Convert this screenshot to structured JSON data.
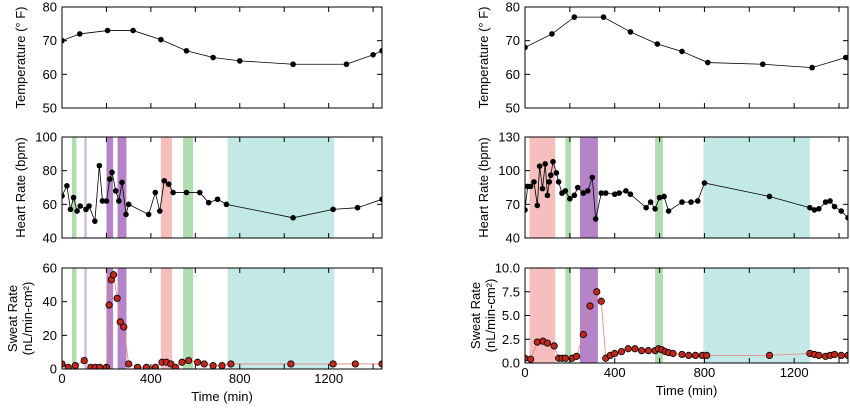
{
  "colors": {
    "green": "#8fcf8f",
    "violet": "#9b59b6",
    "light_violet": "#c9a3d9",
    "red": "#f4a3a3",
    "teal": "#a9e0dd",
    "black_marker": "#000000",
    "sweat_marker": "#c0271d",
    "sweat_line": "#e8827b"
  },
  "chart_data": [
    {
      "type": "line",
      "id": "left-temperature",
      "ylabel": "Temperature (° F)",
      "xlim": [
        0,
        1440
      ],
      "ylim": [
        50,
        80
      ],
      "yticks": [
        "50",
        "60",
        "70",
        "80"
      ],
      "show_xticklabels": false,
      "line_color": "black",
      "marker": "black",
      "x": [
        0,
        80,
        205,
        320,
        445,
        560,
        680,
        800,
        1040,
        1280,
        1400,
        1440
      ],
      "y": [
        70,
        72,
        73,
        73,
        70.3,
        67,
        65,
        64,
        63,
        63,
        65.8,
        67
      ]
    },
    {
      "type": "line",
      "id": "left-heart-rate",
      "ylabel": "Heart Rate (bpm)",
      "xlim": [
        0,
        1440
      ],
      "ylim": [
        40,
        100
      ],
      "yticks": [
        "40",
        "60",
        "80",
        "100"
      ],
      "show_xticklabels": false,
      "line_color": "black",
      "marker": "black",
      "bands": [
        {
          "x": [
            45,
            65
          ],
          "color": "green"
        },
        {
          "x": [
            100,
            112
          ],
          "color": "light_violet"
        },
        {
          "x": [
            200,
            230
          ],
          "color": "violet"
        },
        {
          "x": [
            250,
            290
          ],
          "color": "violet"
        },
        {
          "x": [
            445,
            495
          ],
          "color": "red"
        },
        {
          "x": [
            545,
            590
          ],
          "color": "green"
        },
        {
          "x": [
            745,
            1225
          ],
          "color": "teal"
        }
      ],
      "x": [
        0,
        22,
        38,
        52,
        68,
        82,
        108,
        122,
        148,
        168,
        182,
        200,
        215,
        225,
        242,
        256,
        270,
        288,
        300,
        390,
        420,
        440,
        460,
        480,
        500,
        560,
        620,
        660,
        700,
        740,
        1040,
        1220,
        1330,
        1440
      ],
      "y": [
        65,
        71,
        57,
        64,
        56,
        59,
        57,
        59,
        50,
        83,
        62,
        62,
        75,
        79,
        68,
        62,
        73,
        54,
        60,
        54,
        67,
        56,
        74,
        72,
        67,
        67,
        67,
        61,
        63,
        60,
        52,
        57,
        58,
        63
      ]
    },
    {
      "type": "line",
      "id": "left-sweat-rate",
      "ylabel": "Sweat Rate",
      "ylabel2": "(nL/min-cm²)",
      "xlabel": "Time (min)",
      "xlim": [
        0,
        1440
      ],
      "xticks": [
        "0",
        "400",
        "800",
        "1200"
      ],
      "ylim": [
        0,
        60
      ],
      "yticks": [
        "0",
        "20",
        "40",
        "60"
      ],
      "line_color": "sweat_line",
      "marker": "sweat_marker",
      "bands": [
        {
          "x": [
            45,
            65
          ],
          "color": "green"
        },
        {
          "x": [
            100,
            112
          ],
          "color": "light_violet"
        },
        {
          "x": [
            200,
            230
          ],
          "color": "violet"
        },
        {
          "x": [
            250,
            290
          ],
          "color": "violet"
        },
        {
          "x": [
            445,
            495
          ],
          "color": "red"
        },
        {
          "x": [
            545,
            590
          ],
          "color": "green"
        },
        {
          "x": [
            745,
            1225
          ],
          "color": "teal"
        }
      ],
      "x": [
        0,
        28,
        60,
        100,
        130,
        150,
        170,
        200,
        212,
        222,
        232,
        248,
        262,
        278,
        300,
        340,
        380,
        420,
        450,
        470,
        490,
        510,
        540,
        570,
        610,
        640,
        680,
        720,
        760,
        1030,
        1220,
        1320,
        1440
      ],
      "y": [
        3,
        1,
        2,
        5,
        1,
        1,
        1,
        1,
        38,
        53,
        56,
        42,
        28,
        25,
        3,
        1,
        1,
        1,
        4,
        4,
        3,
        1,
        4,
        5,
        4,
        3,
        2,
        2,
        3,
        3,
        3,
        3,
        3
      ]
    },
    {
      "type": "line",
      "id": "right-temperature",
      "ylabel": "Temperature (° F)",
      "xlim": [
        0,
        1440
      ],
      "ylim": [
        50,
        80
      ],
      "yticks": [
        "50",
        "60",
        "70",
        "80"
      ],
      "show_xticklabels": false,
      "line_color": "black",
      "marker": "black",
      "x": [
        0,
        120,
        220,
        350,
        470,
        590,
        700,
        815,
        1060,
        1280,
        1430,
        1440
      ],
      "y": [
        68,
        72,
        77,
        77,
        72.6,
        69,
        66.8,
        63.5,
        63,
        62,
        65,
        65
      ]
    },
    {
      "type": "line",
      "id": "right-heart-rate",
      "ylabel": "Heart Rate (bpm)",
      "xlim": [
        0,
        1440
      ],
      "ylim": [
        40,
        130
      ],
      "yticks": [
        "40",
        "70",
        "100",
        "130"
      ],
      "show_xticklabels": false,
      "line_color": "black",
      "marker": "black",
      "bands": [
        {
          "x": [
            20,
            135
          ],
          "color": "red"
        },
        {
          "x": [
            180,
            205
          ],
          "color": "green"
        },
        {
          "x": [
            245,
            325
          ],
          "color": "violet"
        },
        {
          "x": [
            580,
            615
          ],
          "color": "green"
        },
        {
          "x": [
            795,
            1270
          ],
          "color": "teal"
        }
      ],
      "x": [
        0,
        12,
        25,
        40,
        55,
        65,
        78,
        90,
        100,
        108,
        115,
        125,
        140,
        150,
        165,
        180,
        200,
        220,
        235,
        260,
        280,
        300,
        315,
        340,
        360,
        400,
        420,
        450,
        470,
        540,
        560,
        580,
        600,
        620,
        640,
        700,
        740,
        770,
        800,
        1090,
        1270,
        1290,
        1310,
        1340,
        1360,
        1380,
        1410,
        1440
      ],
      "y": [
        65,
        86,
        86,
        90,
        69,
        104,
        84,
        106,
        78,
        90,
        96,
        108,
        98,
        90,
        80,
        82,
        75,
        78,
        85,
        80,
        82,
        94,
        57,
        80,
        80,
        79,
        80,
        82,
        79,
        67,
        72,
        66,
        76,
        77,
        64,
        72,
        72,
        73,
        89,
        77,
        67,
        65,
        66,
        72,
        73,
        68,
        64,
        58
      ]
    },
    {
      "type": "line",
      "id": "right-sweat-rate",
      "ylabel": "Sweat Rate",
      "ylabel2": "(nL/min-cm²)",
      "xlabel": "Time (min)",
      "xlim": [
        0,
        1440
      ],
      "xticks": [
        "0",
        "400",
        "800",
        "1200"
      ],
      "ylim": [
        0,
        10
      ],
      "yticks": [
        "0.0",
        "2.5",
        "5.0",
        "7.5",
        "10.0"
      ],
      "line_color": "sweat_line",
      "marker": "sweat_marker",
      "bands": [
        {
          "x": [
            20,
            135
          ],
          "color": "red"
        },
        {
          "x": [
            180,
            205
          ],
          "color": "green"
        },
        {
          "x": [
            245,
            325
          ],
          "color": "violet"
        },
        {
          "x": [
            580,
            615
          ],
          "color": "green"
        },
        {
          "x": [
            795,
            1270
          ],
          "color": "teal"
        }
      ],
      "x": [
        0,
        25,
        55,
        80,
        100,
        130,
        150,
        165,
        180,
        210,
        230,
        260,
        290,
        320,
        340,
        360,
        380,
        400,
        430,
        460,
        490,
        520,
        550,
        580,
        595,
        610,
        625,
        640,
        660,
        700,
        730,
        760,
        790,
        810,
        1090,
        1270,
        1290,
        1310,
        1340,
        1360,
        1380,
        1410,
        1440
      ],
      "y": [
        0.5,
        0.4,
        2.2,
        2.3,
        2.1,
        1.8,
        0.5,
        0.5,
        0.5,
        0.5,
        0.7,
        3.0,
        6.0,
        7.5,
        6.5,
        0.5,
        0.8,
        1.0,
        1.2,
        1.5,
        1.5,
        1.3,
        1.3,
        1.3,
        1.5,
        1.4,
        1.2,
        1.1,
        1.0,
        0.9,
        0.8,
        0.8,
        0.8,
        0.8,
        0.8,
        1.0,
        0.9,
        0.8,
        0.7,
        0.8,
        0.9,
        0.8,
        0.8
      ]
    }
  ]
}
